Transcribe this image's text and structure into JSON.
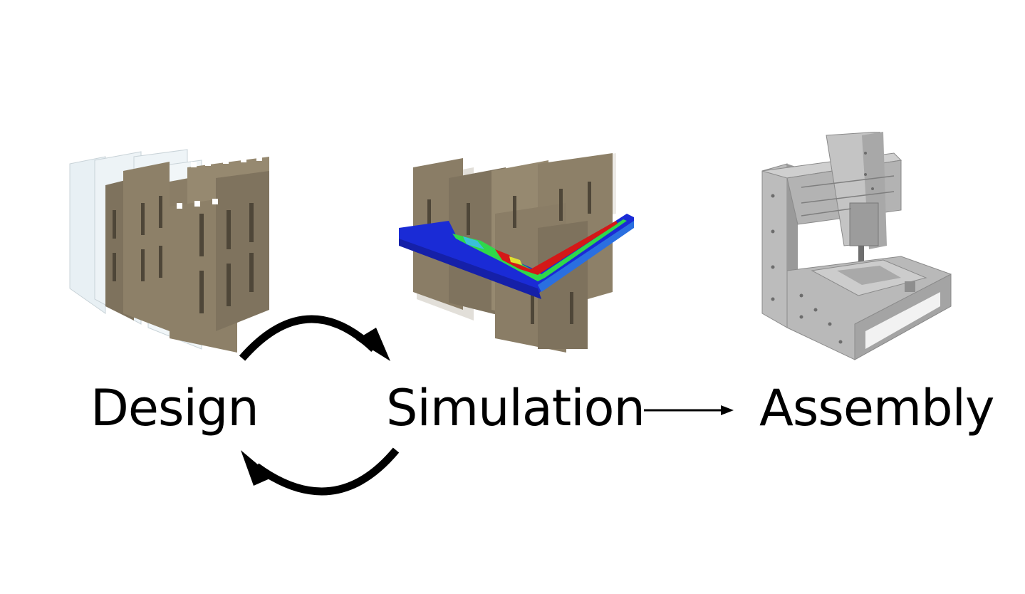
{
  "stages": [
    {
      "id": "design",
      "label": "Design"
    },
    {
      "id": "simulation",
      "label": "Simulation"
    },
    {
      "id": "assembly",
      "label": "Assembly"
    }
  ],
  "colors": {
    "panel": "#8d8068",
    "panel_dark": "#5f5545",
    "panel_light": "#e6eef2",
    "heat_blue": "#1a2bd6",
    "heat_green": "#2fd84a",
    "heat_red": "#d41818",
    "machine": "#b5b5b5",
    "machine_dark": "#7d7d7d",
    "arrow": "#000000"
  },
  "icons": [
    "design-panels-illustration",
    "simulation-heatmap-illustration",
    "cnc-machine-illustration"
  ]
}
